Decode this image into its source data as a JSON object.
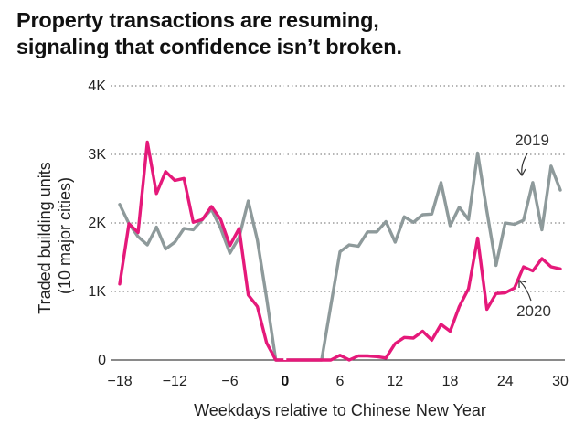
{
  "title_lines": [
    "Property transactions are resuming,",
    "signaling that confidence isn’t broken."
  ],
  "colors": {
    "series_2019": "#8e9a9b",
    "series_2020": "#e5197a",
    "grid": "#8a8a8a",
    "zero_line": "#ffffff"
  },
  "chart_data": {
    "type": "line",
    "xlabel": "Weekdays relative to Chinese New Year",
    "ylabel_lines": [
      "Traded building units",
      "(10 major cities)"
    ],
    "xlim": [
      -19,
      30.5
    ],
    "ylim": [
      0,
      4000
    ],
    "x_ticks": [
      -18,
      -12,
      -6,
      0,
      6,
      12,
      18,
      24,
      30
    ],
    "x_tick_labels": [
      "−18",
      "−12",
      "−6",
      "0",
      "6",
      "12",
      "18",
      "24",
      "30"
    ],
    "y_ticks": [
      0,
      1000,
      2000,
      3000,
      4000
    ],
    "y_tick_labels": [
      "0",
      "1K",
      "2K",
      "3K",
      "4K"
    ],
    "grid": "horizontal dotted",
    "series": [
      {
        "name": "2019",
        "color": "#8e9a9b",
        "x": [
          -18,
          -17,
          -16,
          -15,
          -14,
          -13,
          -12,
          -11,
          -10,
          -9,
          -8,
          -7,
          -6,
          -5,
          -4,
          -3,
          -2,
          -1,
          0,
          1,
          2,
          3,
          4,
          5,
          6,
          7,
          8,
          9,
          10,
          11,
          12,
          13,
          14,
          15,
          16,
          17,
          18,
          19,
          20,
          21,
          22,
          23,
          24,
          25,
          26,
          27,
          28,
          29,
          30
        ],
        "values": [
          2270,
          1990,
          1800,
          1680,
          1940,
          1620,
          1720,
          1920,
          1900,
          2050,
          2200,
          1920,
          1560,
          1790,
          2320,
          1750,
          900,
          0,
          0,
          0,
          0,
          0,
          0,
          800,
          1580,
          1680,
          1660,
          1870,
          1870,
          2020,
          1720,
          2090,
          2010,
          2120,
          2130,
          2590,
          1960,
          2230,
          2050,
          3020,
          2170,
          1380,
          2000,
          1980,
          2040,
          2590,
          1900,
          2830,
          2480
        ]
      },
      {
        "name": "2020",
        "color": "#e5197a",
        "x": [
          -18,
          -17,
          -16,
          -15,
          -14,
          -13,
          -12,
          -11,
          -10,
          -9,
          -8,
          -7,
          -6,
          -5,
          -4,
          -3,
          -2,
          -1,
          0,
          1,
          2,
          3,
          4,
          5,
          6,
          7,
          8,
          9,
          10,
          11,
          12,
          13,
          14,
          15,
          16,
          17,
          18,
          19,
          20,
          21,
          22,
          23,
          24,
          25,
          26,
          27,
          28,
          29,
          30
        ],
        "values": [
          1110,
          1990,
          1860,
          3180,
          2430,
          2750,
          2620,
          2650,
          2010,
          2050,
          2240,
          2050,
          1670,
          1920,
          950,
          780,
          250,
          0,
          0,
          0,
          0,
          0,
          0,
          0,
          70,
          0,
          60,
          60,
          50,
          30,
          240,
          330,
          320,
          420,
          290,
          520,
          420,
          780,
          1040,
          1780,
          740,
          970,
          980,
          1050,
          1360,
          1300,
          1480,
          1360,
          1330
        ]
      }
    ],
    "annotations": [
      {
        "text": "2019",
        "points_to": "2019"
      },
      {
        "text": "2020",
        "points_to": "2020"
      }
    ]
  }
}
